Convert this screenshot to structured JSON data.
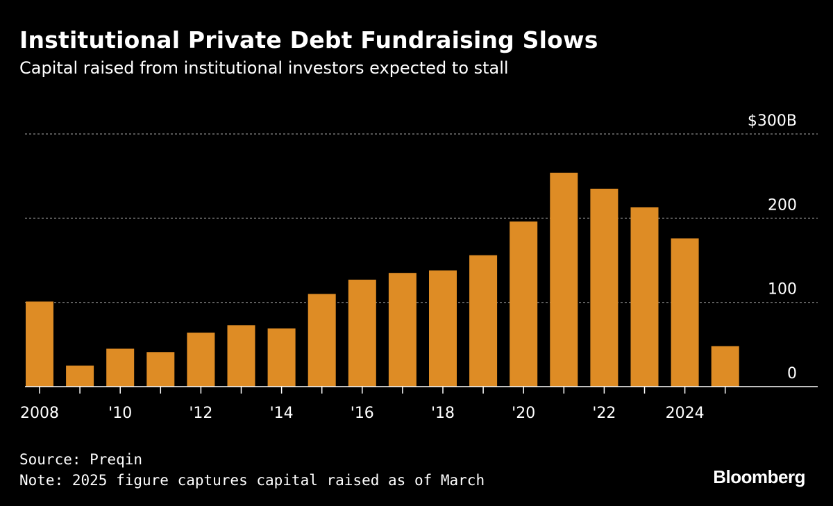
{
  "header": {
    "title": "Institutional Private Debt Fundraising Slows",
    "subtitle": "Capital raised from institutional investors expected to stall"
  },
  "footer": {
    "source": "Source: Preqin",
    "note": "Note: 2025 figure captures capital raised as of March",
    "brand": "Bloomberg"
  },
  "colors": {
    "bar": "#DE8C25",
    "background": "#000000",
    "grid": "#8a8a8a",
    "text": "#ffffff"
  },
  "chart_data": {
    "type": "bar",
    "title": "Institutional Private Debt Fundraising Slows",
    "subtitle": "Capital raised from institutional investors expected to stall",
    "xlabel": "",
    "ylabel": "",
    "ylim": [
      0,
      300
    ],
    "yticks": [
      0,
      100,
      200,
      300
    ],
    "ytick_labels": [
      "0",
      "100",
      "200",
      "$300B"
    ],
    "grid": true,
    "categories": [
      "2008",
      "2009",
      "2010",
      "2011",
      "2012",
      "2013",
      "2014",
      "2015",
      "2016",
      "2017",
      "2018",
      "2019",
      "2020",
      "2021",
      "2022",
      "2023",
      "2024",
      "2025"
    ],
    "xtick_labels": [
      "2008",
      "",
      "'10",
      "",
      "'12",
      "",
      "'14",
      "",
      "'16",
      "",
      "'18",
      "",
      "'20",
      "",
      "'22",
      "",
      "2024",
      ""
    ],
    "values": [
      101,
      25,
      45,
      41,
      64,
      73,
      69,
      110,
      127,
      135,
      138,
      156,
      196,
      254,
      235,
      213,
      176,
      48
    ]
  }
}
